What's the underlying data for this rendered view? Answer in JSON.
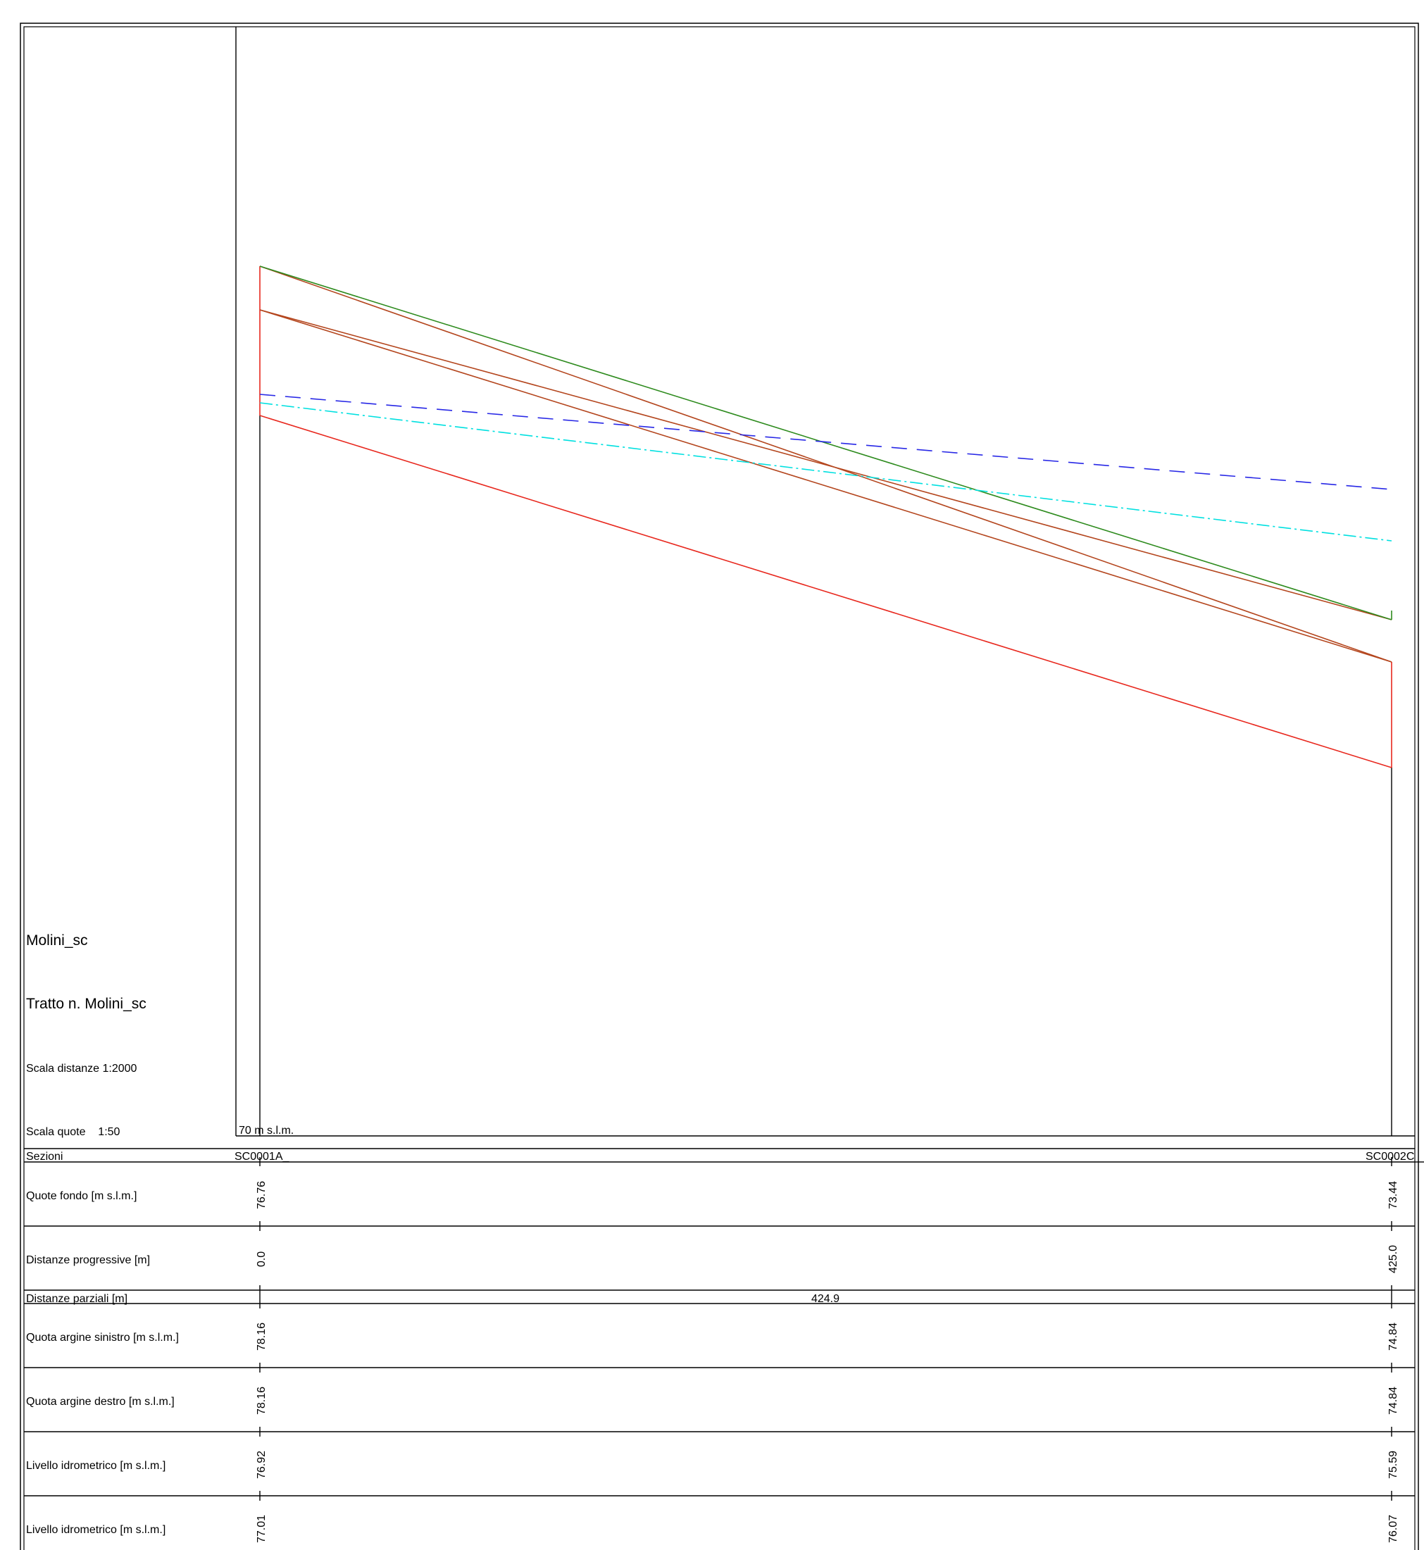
{
  "profile": {
    "title": "Molini_sc",
    "reach": "Tratto n. Molini_sc",
    "distance_scale": "Scala distanze 1:2000",
    "height_scale": "Scala quote    1:50",
    "datum_label": "70 m s.l.m."
  },
  "table": {
    "rows": [
      "Sezioni",
      "Quote fondo [m s.l.m.]",
      "Distanze progressive [m]",
      "Distanze parziali [m]",
      "Quota argine sinistro [m s.l.m.]",
      "Quota argine destro [m s.l.m.]",
      "Livello idrometrico [m s.l.m.]",
      "Livello idrometrico [m s.l.m.]"
    ],
    "sections": [
      {
        "name": "SC0001A_",
        "bed": "76.76",
        "progressive": "0.0",
        "left_bank": "78.16",
        "right_bank": "78.16",
        "level_1": "76.92",
        "level_2": "77.01"
      },
      {
        "name": "SC0002C",
        "bed": "73.44",
        "progressive": "425.0",
        "left_bank": "74.84",
        "right_bank": "74.84",
        "level_1": "75.59",
        "level_2": "76.07"
      }
    ],
    "partial": "424.9"
  },
  "colors": {
    "bed": "#e8281e",
    "bank": "#b4461e",
    "bank_top": "#2e8b1e",
    "level_dashed": "#2828e6",
    "level_dashdot": "#00e0e0",
    "frame": "#000000"
  }
}
